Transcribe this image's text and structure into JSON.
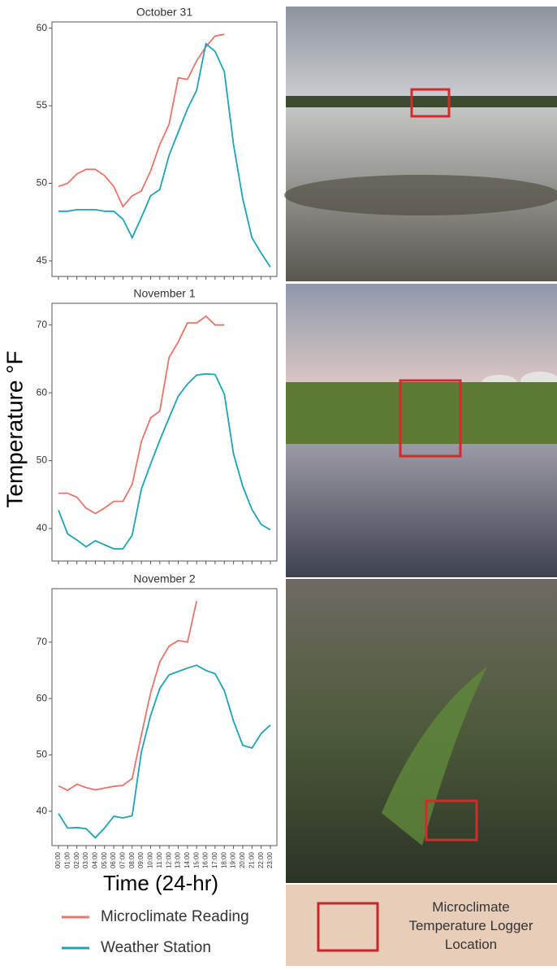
{
  "chart_data": [
    {
      "type": "line",
      "title": "October 31",
      "categories": [
        null,
        null,
        null,
        null,
        null,
        null,
        null,
        null,
        null,
        null,
        null,
        null,
        null,
        null,
        null,
        null,
        null,
        null,
        null,
        null,
        null,
        null,
        null,
        null
      ],
      "series": [
        {
          "color": "#e8756b",
          "values": [
            49.8,
            50.0,
            50.6,
            50.9,
            50.9,
            50.5,
            49.8,
            48.5,
            49.2,
            49.5,
            50.8,
            52.5,
            53.8,
            56.8,
            56.7,
            57.9,
            58.8,
            59.5,
            59.6,
            null,
            null,
            null,
            null,
            null
          ]
        },
        {
          "color": "#1ea3b5",
          "values": [
            48.2,
            48.2,
            48.3,
            48.3,
            48.3,
            48.2,
            48.2,
            47.7,
            46.5,
            47.8,
            49.2,
            49.6,
            51.8,
            53.3,
            54.8,
            56.0,
            59.0,
            58.5,
            57.2,
            52.5,
            49.0,
            46.5,
            45.5,
            44.6
          ]
        }
      ],
      "ylim": [
        44.0,
        60.4
      ],
      "yticks": [
        45,
        50,
        55,
        60
      ]
    },
    {
      "type": "line",
      "title": "November 1",
      "ylabel": "Temperature °F",
      "categories": [
        null,
        null,
        null,
        null,
        null,
        null,
        null,
        null,
        null,
        null,
        null,
        null,
        null,
        null,
        null,
        null,
        null,
        null,
        null,
        null,
        null,
        null,
        null,
        null
      ],
      "series": [
        {
          "color": "#e8756b",
          "values": [
            45.2,
            45.2,
            44.6,
            43.0,
            42.2,
            43.0,
            44.0,
            44.0,
            46.5,
            52.8,
            56.3,
            57.3,
            65.2,
            67.5,
            70.3,
            70.3,
            71.3,
            70.0,
            70.0,
            null,
            null,
            null,
            null,
            null
          ]
        },
        {
          "color": "#1ea3b5",
          "values": [
            42.7,
            39.2,
            38.3,
            37.3,
            38.2,
            37.6,
            37.0,
            37.0,
            39.0,
            45.8,
            49.5,
            53.0,
            56.3,
            59.5,
            61.3,
            62.6,
            62.8,
            62.7,
            59.8,
            51.0,
            46.2,
            42.8,
            40.6,
            39.8
          ]
        }
      ],
      "ylim": [
        35.2,
        73.2
      ],
      "yticks": [
        40,
        50,
        60,
        70
      ]
    },
    {
      "type": "line",
      "title": "November 2",
      "xlabel": "Time (24-hr)",
      "categories": [
        "00:00",
        "01:00",
        "02:00",
        "03:00",
        "04:00",
        "05:00",
        "06:00",
        "07:00",
        "08:00",
        "09:00",
        "10:00",
        "11:00",
        "12:00",
        "13:00",
        "14:00",
        "15:00",
        "16:00",
        "17:00",
        "18:00",
        "19:00",
        "20:00",
        "21:00",
        "22:00",
        "23:00"
      ],
      "series": [
        {
          "name": "Microclimate Reading",
          "color": "#e8756b",
          "values": [
            44.5,
            43.7,
            44.8,
            44.2,
            43.8,
            44.1,
            44.4,
            44.6,
            45.8,
            53.5,
            61.0,
            66.5,
            69.3,
            70.3,
            70.0,
            77.3,
            null,
            null,
            null,
            null,
            null,
            null,
            null,
            null
          ]
        },
        {
          "name": "Weather Station",
          "color": "#1ea3b5",
          "values": [
            39.6,
            37.0,
            37.1,
            36.9,
            35.3,
            37.0,
            39.1,
            38.8,
            39.2,
            50.5,
            57.0,
            61.8,
            64.2,
            64.8,
            65.4,
            65.9,
            65.0,
            64.4,
            61.4,
            56.0,
            51.7,
            51.2,
            53.8,
            55.3
          ]
        }
      ],
      "ylim": [
        33.9,
        79.5
      ],
      "yticks": [
        40,
        50,
        60,
        70
      ]
    }
  ],
  "photo_legend": "Microclimate Temperature Logger Location"
}
